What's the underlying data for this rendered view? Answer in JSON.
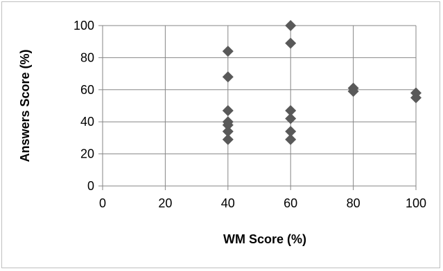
{
  "chart_data": {
    "type": "scatter",
    "title": "",
    "xlabel": "WM Score (%)",
    "ylabel": "Answers Score (%)",
    "xlim": [
      0,
      100
    ],
    "ylim": [
      0,
      100
    ],
    "xticks": [
      0,
      20,
      40,
      60,
      80,
      100
    ],
    "yticks": [
      0,
      20,
      40,
      60,
      80,
      100
    ],
    "xtick_labels": [
      "0",
      "20",
      "40",
      "60",
      "80",
      "100"
    ],
    "ytick_labels": [
      "0",
      "20",
      "40",
      "60",
      "80",
      "100"
    ],
    "grid": true,
    "legend": "none",
    "marker": "diamond",
    "marker_color": "#595959",
    "gridline_color": "#868686",
    "series": [
      {
        "points": [
          {
            "x": 40,
            "y": 84
          },
          {
            "x": 40,
            "y": 68
          },
          {
            "x": 40,
            "y": 47
          },
          {
            "x": 40,
            "y": 40
          },
          {
            "x": 40,
            "y": 38
          },
          {
            "x": 40,
            "y": 34
          },
          {
            "x": 40,
            "y": 29
          },
          {
            "x": 60,
            "y": 100
          },
          {
            "x": 60,
            "y": 89
          },
          {
            "x": 60,
            "y": 47
          },
          {
            "x": 60,
            "y": 42
          },
          {
            "x": 60,
            "y": 34
          },
          {
            "x": 60,
            "y": 29
          },
          {
            "x": 80,
            "y": 61
          },
          {
            "x": 80,
            "y": 59
          },
          {
            "x": 100,
            "y": 58
          },
          {
            "x": 100,
            "y": 55
          }
        ]
      }
    ]
  }
}
